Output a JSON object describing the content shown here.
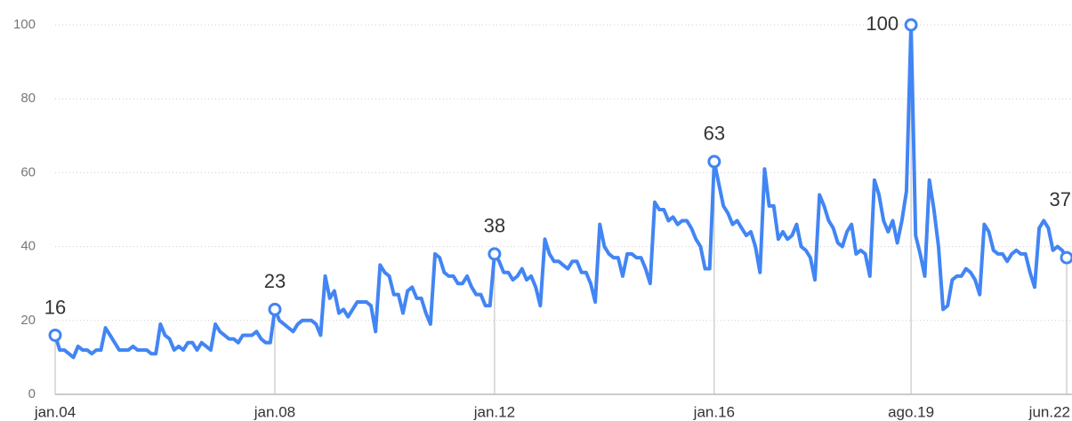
{
  "chart_data": {
    "type": "line",
    "categories": [
      "jan.04",
      null,
      null,
      null,
      null,
      null,
      null,
      null,
      null,
      null,
      null,
      null,
      null,
      null,
      null,
      null,
      null,
      null,
      null,
      null,
      null,
      null,
      null,
      null,
      null,
      null,
      null,
      null,
      null,
      null,
      null,
      null,
      null,
      null,
      null,
      null,
      null,
      null,
      null,
      null,
      null,
      null,
      null,
      null,
      null,
      null,
      null,
      null,
      "jan.08",
      null,
      null,
      null,
      null,
      null,
      null,
      null,
      null,
      null,
      null,
      null,
      null,
      null,
      null,
      null,
      null,
      null,
      null,
      null,
      null,
      null,
      null,
      null,
      null,
      null,
      null,
      null,
      null,
      null,
      null,
      null,
      null,
      null,
      null,
      null,
      null,
      null,
      null,
      null,
      null,
      null,
      null,
      null,
      null,
      null,
      null,
      null,
      "jan.12",
      null,
      null,
      null,
      null,
      null,
      null,
      null,
      null,
      null,
      null,
      null,
      null,
      null,
      null,
      null,
      null,
      null,
      null,
      null,
      null,
      null,
      null,
      null,
      null,
      null,
      null,
      null,
      null,
      null,
      null,
      null,
      null,
      null,
      null,
      null,
      null,
      null,
      null,
      null,
      null,
      null,
      null,
      null,
      null,
      null,
      null,
      null,
      "jan.16",
      null,
      null,
      null,
      null,
      null,
      null,
      null,
      null,
      null,
      null,
      null,
      null,
      null,
      null,
      null,
      null,
      null,
      null,
      null,
      null,
      null,
      null,
      null,
      null,
      null,
      null,
      null,
      null,
      null,
      null,
      null,
      null,
      null,
      null,
      null,
      null,
      null,
      null,
      null,
      null,
      null,
      null,
      "ago.19",
      null,
      null,
      null,
      null,
      null,
      null,
      null,
      null,
      null,
      null,
      null,
      null,
      null,
      null,
      null,
      null,
      null,
      null,
      null,
      null,
      null,
      null,
      null,
      null,
      null,
      null,
      null,
      null,
      null,
      null,
      null,
      null,
      null,
      "jun.22"
    ],
    "values": [
      16,
      12,
      12,
      11,
      10,
      13,
      12,
      12,
      11,
      12,
      12,
      18,
      16,
      14,
      12,
      12,
      12,
      13,
      12,
      12,
      12,
      11,
      11,
      19,
      16,
      15,
      12,
      13,
      12,
      14,
      14,
      12,
      14,
      13,
      12,
      19,
      17,
      16,
      15,
      15,
      14,
      16,
      16,
      16,
      17,
      15,
      14,
      14,
      23,
      20,
      19,
      18,
      17,
      19,
      20,
      20,
      20,
      19,
      16,
      32,
      26,
      28,
      22,
      23,
      21,
      23,
      25,
      25,
      25,
      24,
      17,
      35,
      33,
      32,
      27,
      27,
      22,
      28,
      29,
      26,
      26,
      22,
      19,
      38,
      37,
      33,
      32,
      32,
      30,
      30,
      32,
      29,
      27,
      27,
      24,
      24,
      38,
      36,
      33,
      33,
      31,
      32,
      34,
      31,
      32,
      29,
      24,
      42,
      38,
      36,
      36,
      35,
      34,
      36,
      36,
      33,
      33,
      30,
      25,
      46,
      40,
      38,
      37,
      37,
      32,
      38,
      38,
      37,
      37,
      34,
      30,
      52,
      50,
      50,
      47,
      48,
      46,
      47,
      47,
      45,
      42,
      40,
      34,
      34,
      63,
      57,
      51,
      49,
      46,
      47,
      45,
      43,
      44,
      40,
      33,
      61,
      51,
      51,
      42,
      44,
      42,
      43,
      46,
      40,
      39,
      37,
      31,
      54,
      51,
      47,
      45,
      41,
      40,
      44,
      46,
      38,
      39,
      38,
      32,
      58,
      54,
      47,
      44,
      47,
      41,
      47,
      55,
      100,
      43,
      38,
      32,
      58,
      50,
      40,
      23,
      24,
      31,
      32,
      32,
      34,
      33,
      31,
      27,
      46,
      44,
      39,
      38,
      38,
      36,
      38,
      39,
      38,
      38,
      33,
      29,
      45,
      47,
      45,
      39,
      40,
      39,
      37
    ],
    "value_labels": [
      "16",
      null,
      null,
      null,
      null,
      null,
      null,
      null,
      null,
      null,
      null,
      null,
      null,
      null,
      null,
      null,
      null,
      null,
      null,
      null,
      null,
      null,
      null,
      null,
      null,
      null,
      null,
      null,
      null,
      null,
      null,
      null,
      null,
      null,
      null,
      null,
      null,
      null,
      null,
      null,
      null,
      null,
      null,
      null,
      null,
      null,
      null,
      null,
      "23",
      null,
      null,
      null,
      null,
      null,
      null,
      null,
      null,
      null,
      null,
      null,
      null,
      null,
      null,
      null,
      null,
      null,
      null,
      null,
      null,
      null,
      null,
      null,
      null,
      null,
      null,
      null,
      null,
      null,
      null,
      null,
      null,
      null,
      null,
      null,
      null,
      null,
      null,
      null,
      null,
      null,
      null,
      null,
      null,
      null,
      null,
      null,
      "38",
      null,
      null,
      null,
      null,
      null,
      null,
      null,
      null,
      null,
      null,
      null,
      null,
      null,
      null,
      null,
      null,
      null,
      null,
      null,
      null,
      null,
      null,
      null,
      null,
      null,
      null,
      null,
      null,
      null,
      null,
      null,
      null,
      null,
      null,
      null,
      null,
      null,
      null,
      null,
      null,
      null,
      null,
      null,
      null,
      null,
      null,
      null,
      "63",
      null,
      null,
      null,
      null,
      null,
      null,
      null,
      null,
      null,
      null,
      null,
      null,
      null,
      null,
      null,
      null,
      null,
      null,
      null,
      null,
      null,
      null,
      null,
      null,
      null,
      null,
      null,
      null,
      null,
      null,
      null,
      null,
      null,
      null,
      null,
      null,
      null,
      null,
      null,
      null,
      null,
      null,
      "100",
      null,
      null,
      null,
      null,
      null,
      null,
      null,
      null,
      null,
      null,
      null,
      null,
      null,
      null,
      null,
      null,
      null,
      null,
      null,
      null,
      null,
      null,
      null,
      null,
      null,
      null,
      null,
      null,
      null,
      null,
      null,
      null,
      null,
      "37"
    ],
    "color": "#4285f4",
    "ylim": [
      0,
      100
    ],
    "yticks": [
      0,
      20,
      40,
      60,
      80,
      100
    ],
    "grid": true
  }
}
